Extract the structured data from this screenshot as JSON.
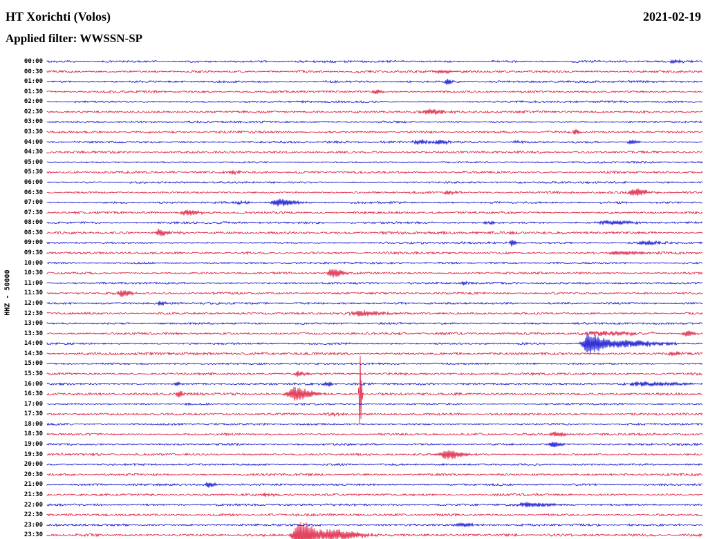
{
  "header": {
    "station": "HT Xorichti (Volos)",
    "date": "2021-02-19",
    "filter": "Applied filter: WWSSN-SP"
  },
  "left_label": "HHZ - 50000",
  "palette": {
    "blue": "#0000cc",
    "red": "#dc1439"
  },
  "chart_data": {
    "type": "line",
    "subtype": "helicorder-seismogram",
    "title": "HT Xorichti (Volos)",
    "date": "2021-02-19",
    "filter": "WWSSN-SP",
    "channel_scale_label": "HHZ - 50000",
    "minutes_per_line": 30,
    "legend_position": "none",
    "grid": false,
    "trace_color_pattern": [
      "blue",
      "red"
    ],
    "rows": [
      {
        "t": "00:00",
        "c": "blue",
        "n": 1.2,
        "e": [
          {
            "x": 0.955,
            "a": 2.5,
            "w": 0.01
          }
        ]
      },
      {
        "t": "00:30",
        "c": "red",
        "n": 1.3,
        "e": [
          {
            "x": 0.6,
            "a": 2,
            "w": 0.02
          }
        ]
      },
      {
        "t": "01:00",
        "c": "blue",
        "n": 1.2,
        "e": [
          {
            "x": 0.61,
            "a": 4,
            "w": 0.008
          }
        ]
      },
      {
        "t": "01:30",
        "c": "red",
        "n": 1.3,
        "e": [
          {
            "x": 0.5,
            "a": 2.5,
            "w": 0.012
          }
        ]
      },
      {
        "t": "02:00",
        "c": "blue",
        "n": 1.1,
        "e": []
      },
      {
        "t": "02:30",
        "c": "red",
        "n": 1.3,
        "e": [
          {
            "x": 0.585,
            "a": 4,
            "w": 0.025
          }
        ]
      },
      {
        "t": "03:00",
        "c": "blue",
        "n": 1.1,
        "e": []
      },
      {
        "t": "03:30",
        "c": "red",
        "n": 1.3,
        "e": [
          {
            "x": 0.805,
            "a": 4,
            "w": 0.006
          }
        ]
      },
      {
        "t": "04:00",
        "c": "blue",
        "n": 1.2,
        "e": [
          {
            "x": 0.565,
            "a": 3,
            "w": 0.02
          },
          {
            "x": 0.6,
            "a": 3,
            "w": 0.012
          },
          {
            "x": 0.715,
            "a": 2,
            "w": 0.008
          },
          {
            "x": 0.89,
            "a": 3,
            "w": 0.012
          }
        ]
      },
      {
        "t": "04:30",
        "c": "red",
        "n": 1.3,
        "e": []
      },
      {
        "t": "05:00",
        "c": "blue",
        "n": 1.1,
        "e": []
      },
      {
        "t": "05:30",
        "c": "red",
        "n": 1.3,
        "e": [
          {
            "x": 0.28,
            "a": 2,
            "w": 0.01
          }
        ]
      },
      {
        "t": "06:00",
        "c": "blue",
        "n": 1.1,
        "e": []
      },
      {
        "t": "06:30",
        "c": "red",
        "n": 1.3,
        "e": [
          {
            "x": 0.61,
            "a": 3,
            "w": 0.012
          },
          {
            "x": 0.895,
            "a": 6,
            "w": 0.018
          }
        ]
      },
      {
        "t": "07:00",
        "c": "blue",
        "n": 1.2,
        "e": [
          {
            "x": 0.295,
            "a": 2.5,
            "w": 0.01
          },
          {
            "x": 0.352,
            "a": 5,
            "w": 0.022
          }
        ]
      },
      {
        "t": "07:30",
        "c": "red",
        "n": 1.3,
        "e": [
          {
            "x": 0.213,
            "a": 4,
            "w": 0.02
          }
        ]
      },
      {
        "t": "08:00",
        "c": "blue",
        "n": 1.2,
        "e": [
          {
            "x": 0.67,
            "a": 2.5,
            "w": 0.01
          },
          {
            "x": 0.855,
            "a": 3,
            "w": 0.035
          }
        ]
      },
      {
        "t": "08:30",
        "c": "red",
        "n": 1.5,
        "e": [
          {
            "x": 0.171,
            "a": 6,
            "w": 0.012
          }
        ]
      },
      {
        "t": "09:00",
        "c": "blue",
        "n": 1.2,
        "e": [
          {
            "x": 0.708,
            "a": 5,
            "w": 0.006
          },
          {
            "x": 0.91,
            "a": 3,
            "w": 0.02
          }
        ]
      },
      {
        "t": "09:30",
        "c": "red",
        "n": 1.4,
        "e": [
          {
            "x": 0.87,
            "a": 3,
            "w": 0.03
          }
        ]
      },
      {
        "t": "10:00",
        "c": "blue",
        "n": 1.1,
        "e": []
      },
      {
        "t": "10:30",
        "c": "red",
        "n": 1.3,
        "e": [
          {
            "x": 0.435,
            "a": 7,
            "w": 0.014
          }
        ]
      },
      {
        "t": "11:00",
        "c": "blue",
        "n": 1.1,
        "e": [
          {
            "x": 0.635,
            "a": 2.5,
            "w": 0.006
          }
        ]
      },
      {
        "t": "11:30",
        "c": "red",
        "n": 1.3,
        "e": [
          {
            "x": 0.113,
            "a": 5,
            "w": 0.012
          }
        ]
      },
      {
        "t": "12:00",
        "c": "blue",
        "n": 1.1,
        "e": [
          {
            "x": 0.171,
            "a": 4,
            "w": 0.006
          }
        ]
      },
      {
        "t": "12:30",
        "c": "red",
        "n": 1.3,
        "e": [
          {
            "x": 0.477,
            "a": 4,
            "w": 0.03
          }
        ]
      },
      {
        "t": "13:00",
        "c": "blue",
        "n": 1.1,
        "e": []
      },
      {
        "t": "13:30",
        "c": "red",
        "n": 1.4,
        "e": [
          {
            "x": 0.84,
            "a": 3,
            "w": 0.05
          },
          {
            "x": 0.975,
            "a": 4,
            "w": 0.012
          }
        ]
      },
      {
        "t": "14:00",
        "c": "blue",
        "n": 1.2,
        "e": [
          {
            "x": 0.826,
            "a": 16,
            "w": 0.018
          },
          {
            "x": 0.875,
            "a": 5,
            "w": 0.05
          }
        ]
      },
      {
        "t": "14:30",
        "c": "red",
        "n": 1.5,
        "e": [
          {
            "x": 0.955,
            "a": 3,
            "w": 0.012
          }
        ]
      },
      {
        "t": "15:00",
        "c": "blue",
        "n": 1.1,
        "e": []
      },
      {
        "t": "15:30",
        "c": "red",
        "n": 1.4,
        "e": [
          {
            "x": 0.382,
            "a": 4,
            "w": 0.01
          }
        ]
      },
      {
        "t": "16:00",
        "c": "blue",
        "n": 1.2,
        "e": [
          {
            "x": 0.197,
            "a": 3,
            "w": 0.006
          },
          {
            "x": 0.425,
            "a": 4,
            "w": 0.008
          },
          {
            "x": 0.91,
            "a": 3,
            "w": 0.05
          }
        ]
      },
      {
        "t": "16:30",
        "c": "red",
        "n": 1.4,
        "e": [
          {
            "x": 0.2,
            "a": 5,
            "w": 0.006
          },
          {
            "x": 0.377,
            "a": 10,
            "w": 0.022
          },
          {
            "x": 0.477,
            "a": 60,
            "w": 0.0022
          }
        ]
      },
      {
        "t": "17:00",
        "c": "blue",
        "n": 1.1,
        "e": []
      },
      {
        "t": "17:30",
        "c": "red",
        "n": 1.3,
        "e": [
          {
            "x": 0.435,
            "a": 2,
            "w": 0.01
          }
        ]
      },
      {
        "t": "18:00",
        "c": "blue",
        "n": 1.1,
        "e": []
      },
      {
        "t": "18:30",
        "c": "red",
        "n": 1.3,
        "e": [
          {
            "x": 0.775,
            "a": 3,
            "w": 0.015
          }
        ]
      },
      {
        "t": "19:00",
        "c": "blue",
        "n": 1.2,
        "e": [
          {
            "x": 0.77,
            "a": 4,
            "w": 0.012
          }
        ]
      },
      {
        "t": "19:30",
        "c": "red",
        "n": 1.3,
        "e": [
          {
            "x": 0.609,
            "a": 7,
            "w": 0.02
          }
        ]
      },
      {
        "t": "20:00",
        "c": "blue",
        "n": 1.1,
        "e": []
      },
      {
        "t": "20:30",
        "c": "red",
        "n": 1.3,
        "e": []
      },
      {
        "t": "21:00",
        "c": "blue",
        "n": 1.2,
        "e": [
          {
            "x": 0.245,
            "a": 4,
            "w": 0.01
          }
        ]
      },
      {
        "t": "21:30",
        "c": "red",
        "n": 1.3,
        "e": [
          {
            "x": 0.33,
            "a": 2,
            "w": 0.015
          }
        ]
      },
      {
        "t": "22:00",
        "c": "blue",
        "n": 1.2,
        "e": [
          {
            "x": 0.73,
            "a": 3,
            "w": 0.035
          }
        ]
      },
      {
        "t": "22:30",
        "c": "red",
        "n": 1.3,
        "e": []
      },
      {
        "t": "23:00",
        "c": "blue",
        "n": 1.2,
        "e": [
          {
            "x": 0.63,
            "a": 3,
            "w": 0.02
          }
        ]
      },
      {
        "t": "23:30",
        "c": "red",
        "n": 1.4,
        "e": [
          {
            "x": 0.385,
            "a": 22,
            "w": 0.02
          },
          {
            "x": 0.435,
            "a": 8,
            "w": 0.035
          }
        ]
      }
    ]
  }
}
